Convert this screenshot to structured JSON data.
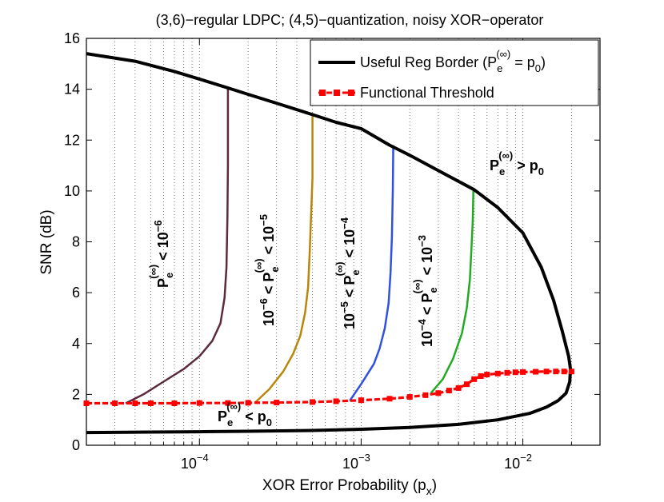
{
  "chart_data": {
    "type": "line",
    "title": "(3,6)−regular LDPC; (4,5)−quantization, noisy XOR−operator",
    "xlabel": "XOR Error Probability (p",
    "xlabel_sub": "x",
    "xlabel_close": ")",
    "ylabel": "SNR (dB)",
    "xscale": "log",
    "xlim": [
      2e-05,
      0.03
    ],
    "ylim": [
      0,
      16
    ],
    "yticks": [
      0,
      2,
      4,
      6,
      8,
      10,
      12,
      14,
      16
    ],
    "xticks": [
      {
        "value": 0.0001,
        "base": "10",
        "exp": "−4"
      },
      {
        "value": 0.001,
        "base": "10",
        "exp": "−3"
      },
      {
        "value": 0.01,
        "base": "10",
        "exp": "−2"
      }
    ],
    "grid": "vertical-dotted",
    "legend": {
      "position": "top-right",
      "entries": [
        {
          "label": "Useful Reg Border (P",
          "sub": "e",
          "sup": "(∞)",
          "rest": " = p",
          "sub2": "0",
          "close": ")",
          "color": "#000000"
        },
        {
          "label": "Functional Threshold",
          "color": "#ff0000"
        }
      ]
    },
    "series": [
      {
        "name": "Useful Reg Border",
        "color": "#000000",
        "x": [
          2e-05,
          4e-05,
          7e-05,
          0.0001,
          0.00015,
          0.0002,
          0.0003,
          0.0005,
          0.0007,
          0.001,
          0.0015,
          0.002,
          0.003,
          0.005,
          0.007,
          0.01,
          0.013,
          0.0155,
          0.0175,
          0.0192,
          0.0197,
          0.0195,
          0.0185,
          0.0165,
          0.014,
          0.011,
          0.007,
          0.004,
          0.002,
          0.001,
          0.0005,
          0.0002,
          0.0001,
          5e-05,
          2e-05
        ],
        "y": [
          15.4,
          15.1,
          14.7,
          14.4,
          14.05,
          13.8,
          13.45,
          13.0,
          12.7,
          12.45,
          11.8,
          11.4,
          10.8,
          10.05,
          9.35,
          8.35,
          7.0,
          5.7,
          4.5,
          3.5,
          3.0,
          2.5,
          2.05,
          1.75,
          1.5,
          1.25,
          1.0,
          0.82,
          0.7,
          0.63,
          0.58,
          0.55,
          0.53,
          0.52,
          0.5
        ]
      },
      {
        "name": "Functional Threshold",
        "color": "#ff0000",
        "style": "dashed-square-markers",
        "x": [
          2e-05,
          3e-05,
          4e-05,
          5e-05,
          7e-05,
          0.0001,
          0.00015,
          0.0002,
          0.0003,
          0.0005,
          0.0007,
          0.001,
          0.0015,
          0.002,
          0.0025,
          0.003,
          0.0035,
          0.004,
          0.0045,
          0.005,
          0.0055,
          0.006,
          0.007,
          0.008,
          0.009,
          0.01,
          0.012,
          0.014,
          0.016,
          0.018,
          0.02
        ],
        "y": [
          1.65,
          1.65,
          1.65,
          1.65,
          1.65,
          1.66,
          1.66,
          1.67,
          1.68,
          1.7,
          1.73,
          1.77,
          1.83,
          1.9,
          1.97,
          2.05,
          2.15,
          2.25,
          2.4,
          2.6,
          2.72,
          2.78,
          2.82,
          2.85,
          2.87,
          2.88,
          2.89,
          2.9,
          2.9,
          2.9,
          2.9
        ]
      },
      {
        "name": "Pe < 1e-6 boundary",
        "color": "#5a2a3f",
        "x": [
          3.5e-05,
          4.5e-05,
          6e-05,
          8e-05,
          0.0001,
          0.00012,
          0.000135,
          0.000143,
          0.000147,
          0.000149,
          0.00015,
          0.00015,
          0.00015
        ],
        "y": [
          1.65,
          2.0,
          2.5,
          3.0,
          3.5,
          4.1,
          4.8,
          5.8,
          7.0,
          9.0,
          11.0,
          13.0,
          14.05
        ]
      },
      {
        "name": "1e-6 < Pe < 1e-5 boundary",
        "color": "#b8860b",
        "x": [
          0.00022,
          0.00027,
          0.00033,
          0.00038,
          0.00042,
          0.00045,
          0.00047,
          0.00048,
          0.00049,
          0.0005,
          0.0005,
          0.0005
        ],
        "y": [
          1.67,
          2.2,
          2.9,
          3.6,
          4.3,
          5.2,
          6.2,
          7.5,
          9.0,
          10.5,
          12.0,
          13.05
        ]
      },
      {
        "name": "1e-5 < Pe < 1e-4 boundary",
        "color": "#3050e0",
        "x": [
          0.00085,
          0.001,
          0.0012,
          0.0013,
          0.0014,
          0.00148,
          0.00152,
          0.00155,
          0.00157,
          0.00158
        ],
        "y": [
          1.75,
          2.4,
          3.2,
          3.8,
          4.6,
          5.6,
          6.8,
          8.2,
          10.0,
          11.8
        ]
      },
      {
        "name": "1e-4 < Pe < 1e-3 boundary",
        "color": "#22aa22",
        "x": [
          0.0027,
          0.0032,
          0.0037,
          0.0042,
          0.0045,
          0.0047,
          0.0048,
          0.0049,
          0.00495
        ],
        "y": [
          2.05,
          2.6,
          3.4,
          4.4,
          5.4,
          6.5,
          7.6,
          8.8,
          10.1
        ]
      }
    ],
    "region_labels": [
      {
        "id": "pe-lt-1e-6",
        "parts": [
          "P",
          "e",
          "(∞)",
          " < 10",
          "−6"
        ]
      },
      {
        "id": "1e-6-to-1e-5",
        "parts": [
          "10",
          "−6",
          " < P",
          "e",
          "(∞)",
          " < 10",
          "−5"
        ]
      },
      {
        "id": "1e-5-to-1e-4",
        "parts": [
          "10",
          "−5",
          " < P",
          "e",
          "(∞)",
          " < 10",
          "−4"
        ]
      },
      {
        "id": "1e-4-to-1e-3",
        "parts": [
          "10",
          "−4",
          " < P",
          "e",
          "(∞)",
          " < 10",
          "−3"
        ]
      },
      {
        "id": "pe-gt-p0",
        "parts": [
          "P",
          "e",
          "(∞)",
          " > p",
          "0"
        ]
      },
      {
        "id": "pe-lt-p0",
        "parts": [
          "P",
          "e",
          "(∞)",
          " < p",
          "0"
        ]
      }
    ]
  }
}
